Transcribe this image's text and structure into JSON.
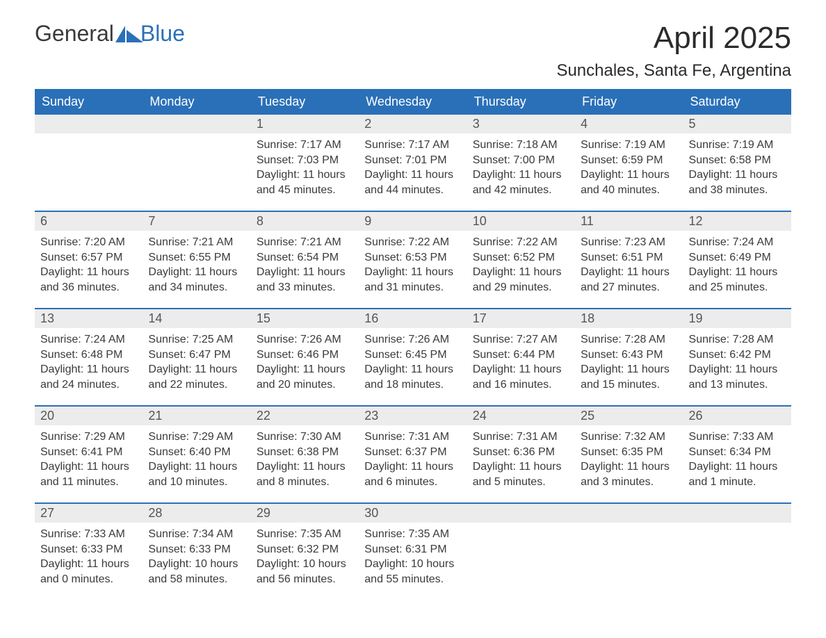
{
  "logo": {
    "text_general": "General",
    "text_blue": "Blue"
  },
  "title": "April 2025",
  "location": "Sunchales, Santa Fe, Argentina",
  "colors": {
    "header_bg": "#2a70b8",
    "header_text": "#ffffff",
    "date_bar_bg": "#ececec",
    "date_bar_text": "#555555",
    "body_text": "#3a3a3a",
    "page_bg": "#ffffff",
    "week_divider": "#2a70b8"
  },
  "day_headers": [
    "Sunday",
    "Monday",
    "Tuesday",
    "Wednesday",
    "Thursday",
    "Friday",
    "Saturday"
  ],
  "weeks": [
    [
      {
        "date": "",
        "sunrise": "",
        "sunset": "",
        "daylight": ""
      },
      {
        "date": "",
        "sunrise": "",
        "sunset": "",
        "daylight": ""
      },
      {
        "date": "1",
        "sunrise": "Sunrise: 7:17 AM",
        "sunset": "Sunset: 7:03 PM",
        "daylight": "Daylight: 11 hours and 45 minutes."
      },
      {
        "date": "2",
        "sunrise": "Sunrise: 7:17 AM",
        "sunset": "Sunset: 7:01 PM",
        "daylight": "Daylight: 11 hours and 44 minutes."
      },
      {
        "date": "3",
        "sunrise": "Sunrise: 7:18 AM",
        "sunset": "Sunset: 7:00 PM",
        "daylight": "Daylight: 11 hours and 42 minutes."
      },
      {
        "date": "4",
        "sunrise": "Sunrise: 7:19 AM",
        "sunset": "Sunset: 6:59 PM",
        "daylight": "Daylight: 11 hours and 40 minutes."
      },
      {
        "date": "5",
        "sunrise": "Sunrise: 7:19 AM",
        "sunset": "Sunset: 6:58 PM",
        "daylight": "Daylight: 11 hours and 38 minutes."
      }
    ],
    [
      {
        "date": "6",
        "sunrise": "Sunrise: 7:20 AM",
        "sunset": "Sunset: 6:57 PM",
        "daylight": "Daylight: 11 hours and 36 minutes."
      },
      {
        "date": "7",
        "sunrise": "Sunrise: 7:21 AM",
        "sunset": "Sunset: 6:55 PM",
        "daylight": "Daylight: 11 hours and 34 minutes."
      },
      {
        "date": "8",
        "sunrise": "Sunrise: 7:21 AM",
        "sunset": "Sunset: 6:54 PM",
        "daylight": "Daylight: 11 hours and 33 minutes."
      },
      {
        "date": "9",
        "sunrise": "Sunrise: 7:22 AM",
        "sunset": "Sunset: 6:53 PM",
        "daylight": "Daylight: 11 hours and 31 minutes."
      },
      {
        "date": "10",
        "sunrise": "Sunrise: 7:22 AM",
        "sunset": "Sunset: 6:52 PM",
        "daylight": "Daylight: 11 hours and 29 minutes."
      },
      {
        "date": "11",
        "sunrise": "Sunrise: 7:23 AM",
        "sunset": "Sunset: 6:51 PM",
        "daylight": "Daylight: 11 hours and 27 minutes."
      },
      {
        "date": "12",
        "sunrise": "Sunrise: 7:24 AM",
        "sunset": "Sunset: 6:49 PM",
        "daylight": "Daylight: 11 hours and 25 minutes."
      }
    ],
    [
      {
        "date": "13",
        "sunrise": "Sunrise: 7:24 AM",
        "sunset": "Sunset: 6:48 PM",
        "daylight": "Daylight: 11 hours and 24 minutes."
      },
      {
        "date": "14",
        "sunrise": "Sunrise: 7:25 AM",
        "sunset": "Sunset: 6:47 PM",
        "daylight": "Daylight: 11 hours and 22 minutes."
      },
      {
        "date": "15",
        "sunrise": "Sunrise: 7:26 AM",
        "sunset": "Sunset: 6:46 PM",
        "daylight": "Daylight: 11 hours and 20 minutes."
      },
      {
        "date": "16",
        "sunrise": "Sunrise: 7:26 AM",
        "sunset": "Sunset: 6:45 PM",
        "daylight": "Daylight: 11 hours and 18 minutes."
      },
      {
        "date": "17",
        "sunrise": "Sunrise: 7:27 AM",
        "sunset": "Sunset: 6:44 PM",
        "daylight": "Daylight: 11 hours and 16 minutes."
      },
      {
        "date": "18",
        "sunrise": "Sunrise: 7:28 AM",
        "sunset": "Sunset: 6:43 PM",
        "daylight": "Daylight: 11 hours and 15 minutes."
      },
      {
        "date": "19",
        "sunrise": "Sunrise: 7:28 AM",
        "sunset": "Sunset: 6:42 PM",
        "daylight": "Daylight: 11 hours and 13 minutes."
      }
    ],
    [
      {
        "date": "20",
        "sunrise": "Sunrise: 7:29 AM",
        "sunset": "Sunset: 6:41 PM",
        "daylight": "Daylight: 11 hours and 11 minutes."
      },
      {
        "date": "21",
        "sunrise": "Sunrise: 7:29 AM",
        "sunset": "Sunset: 6:40 PM",
        "daylight": "Daylight: 11 hours and 10 minutes."
      },
      {
        "date": "22",
        "sunrise": "Sunrise: 7:30 AM",
        "sunset": "Sunset: 6:38 PM",
        "daylight": "Daylight: 11 hours and 8 minutes."
      },
      {
        "date": "23",
        "sunrise": "Sunrise: 7:31 AM",
        "sunset": "Sunset: 6:37 PM",
        "daylight": "Daylight: 11 hours and 6 minutes."
      },
      {
        "date": "24",
        "sunrise": "Sunrise: 7:31 AM",
        "sunset": "Sunset: 6:36 PM",
        "daylight": "Daylight: 11 hours and 5 minutes."
      },
      {
        "date": "25",
        "sunrise": "Sunrise: 7:32 AM",
        "sunset": "Sunset: 6:35 PM",
        "daylight": "Daylight: 11 hours and 3 minutes."
      },
      {
        "date": "26",
        "sunrise": "Sunrise: 7:33 AM",
        "sunset": "Sunset: 6:34 PM",
        "daylight": "Daylight: 11 hours and 1 minute."
      }
    ],
    [
      {
        "date": "27",
        "sunrise": "Sunrise: 7:33 AM",
        "sunset": "Sunset: 6:33 PM",
        "daylight": "Daylight: 11 hours and 0 minutes."
      },
      {
        "date": "28",
        "sunrise": "Sunrise: 7:34 AM",
        "sunset": "Sunset: 6:33 PM",
        "daylight": "Daylight: 10 hours and 58 minutes."
      },
      {
        "date": "29",
        "sunrise": "Sunrise: 7:35 AM",
        "sunset": "Sunset: 6:32 PM",
        "daylight": "Daylight: 10 hours and 56 minutes."
      },
      {
        "date": "30",
        "sunrise": "Sunrise: 7:35 AM",
        "sunset": "Sunset: 6:31 PM",
        "daylight": "Daylight: 10 hours and 55 minutes."
      },
      {
        "date": "",
        "sunrise": "",
        "sunset": "",
        "daylight": ""
      },
      {
        "date": "",
        "sunrise": "",
        "sunset": "",
        "daylight": ""
      },
      {
        "date": "",
        "sunrise": "",
        "sunset": "",
        "daylight": ""
      }
    ]
  ]
}
